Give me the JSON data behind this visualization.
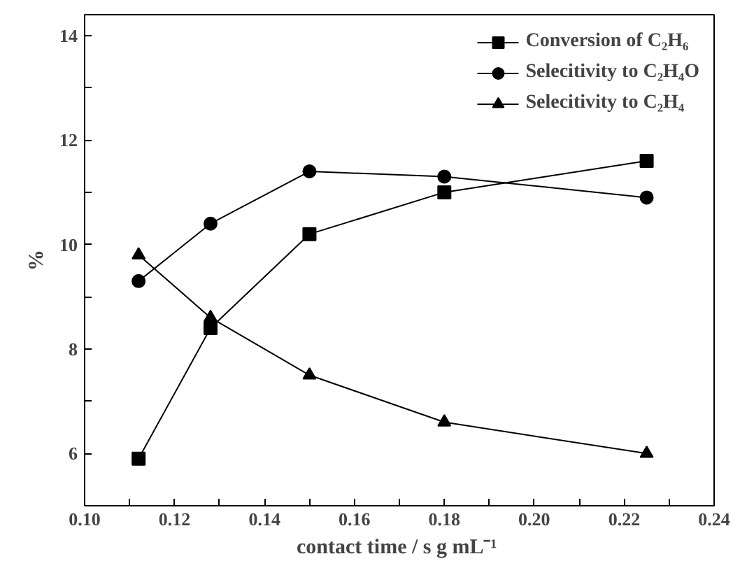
{
  "chart_data": {
    "type": "line",
    "xlabel": "contact time  / s g mL⁻¹",
    "ylabel": "%",
    "x": [
      0.112,
      0.128,
      0.15,
      0.18,
      0.225
    ],
    "xlim": [
      0.1,
      0.24
    ],
    "xticks": [
      {
        "value": 0.1,
        "label": "0.10"
      },
      {
        "value": 0.11,
        "label": null
      },
      0.12,
      {
        "value": 0.13,
        "label": null
      },
      0.14,
      {
        "value": 0.15,
        "label": null
      },
      0.16,
      {
        "value": 0.17,
        "label": null
      },
      0.18,
      {
        "value": 0.19,
        "label": null
      },
      {
        "value": 0.2,
        "label": "0.20"
      },
      {
        "value": 0.21,
        "label": null
      },
      0.22,
      {
        "value": 0.23,
        "label": null
      },
      0.24
    ],
    "ylim": [
      5,
      14.4
    ],
    "yticks": [
      {
        "value": 5,
        "label": null
      },
      6,
      {
        "value": 7,
        "label": null
      },
      8,
      {
        "value": 9,
        "label": null
      },
      10,
      {
        "value": 11,
        "label": null
      },
      12,
      {
        "value": 13,
        "label": null
      },
      14
    ],
    "series": [
      {
        "name": "Conversion of C₂H₆",
        "color": "#000000",
        "marker": "square",
        "values": [
          5.9,
          8.4,
          10.2,
          11.0,
          11.6
        ]
      },
      {
        "name": "Selecitivity to C₂H₄O",
        "color": "#000000",
        "marker": "circle",
        "values": [
          9.3,
          10.4,
          11.4,
          11.3,
          10.9
        ]
      },
      {
        "name": "Selecitivity to C₂H₄",
        "color": "#000000",
        "marker": "triangle",
        "values": [
          9.8,
          8.6,
          7.5,
          6.6,
          6.0
        ]
      }
    ],
    "legend": "top right",
    "grid": false,
    "line_style": "solid"
  }
}
